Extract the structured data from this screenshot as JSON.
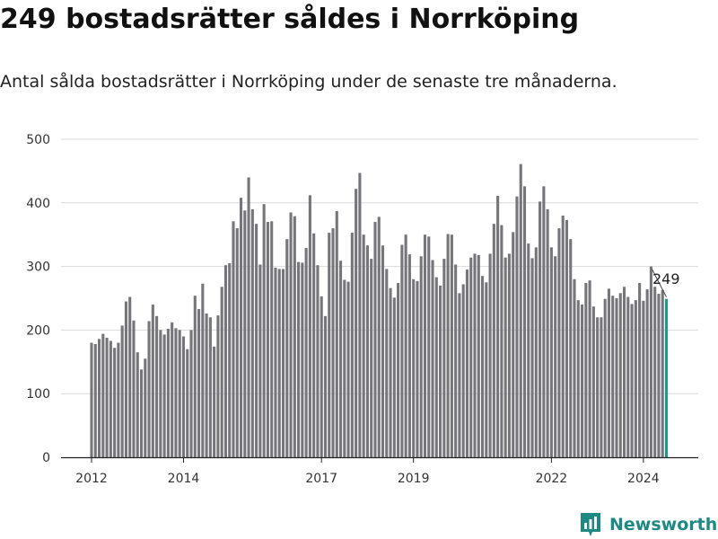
{
  "title": "249 bostadsrätter såldes i Norrköping",
  "subtitle": "Antal sålda bostadsrätter i Norrköping under de senaste tre månaderna.",
  "brand": {
    "name": "Newsworthy"
  },
  "colors": {
    "bar": "#76767a",
    "highlight": "#1a9a91",
    "grid": "#d9d9d9",
    "axis": "#222222",
    "text": "#333333"
  },
  "chart_data": {
    "type": "bar",
    "title": "249 bostadsrätter såldes i Norrköping",
    "subtitle": "Antal sålda bostadsrätter i Norrköping under de senaste tre månaderna.",
    "xlabel": "",
    "ylabel": "",
    "ylim": [
      0,
      500
    ],
    "yticks": [
      0,
      100,
      200,
      300,
      400,
      500
    ],
    "xticks": [
      "2012",
      "2014",
      "2017",
      "2019",
      "2022",
      "2024"
    ],
    "grid": true,
    "legend": "none",
    "start": "2012-01",
    "frequency": "monthly",
    "highlight": {
      "index": 150,
      "value": 249,
      "label": "249"
    },
    "values": [
      180,
      178,
      186,
      194,
      188,
      183,
      172,
      180,
      207,
      245,
      252,
      215,
      165,
      138,
      155,
      214,
      240,
      222,
      200,
      193,
      202,
      212,
      203,
      200,
      190,
      170,
      200,
      254,
      233,
      273,
      226,
      220,
      174,
      223,
      268,
      302,
      305,
      371,
      360,
      408,
      388,
      440,
      390,
      367,
      303,
      398,
      370,
      371,
      298,
      296,
      296,
      343,
      385,
      379,
      307,
      306,
      329,
      412,
      352,
      302,
      253,
      222,
      353,
      360,
      387,
      309,
      279,
      276,
      353,
      422,
      447,
      350,
      333,
      312,
      370,
      378,
      333,
      296,
      266,
      251,
      274,
      334,
      350,
      319,
      280,
      277,
      316,
      350,
      347,
      310,
      283,
      270,
      312,
      351,
      350,
      303,
      258,
      272,
      295,
      314,
      320,
      318,
      285,
      275,
      320,
      367,
      411,
      365,
      314,
      320,
      354,
      410,
      461,
      426,
      336,
      313,
      330,
      402,
      426,
      390,
      330,
      316,
      360,
      380,
      373,
      343,
      280,
      247,
      240,
      274,
      278,
      237,
      220,
      220,
      249,
      265,
      254,
      250,
      258,
      268,
      252,
      241,
      247,
      274,
      246,
      264,
      300,
      268,
      257,
      263,
      249
    ]
  }
}
